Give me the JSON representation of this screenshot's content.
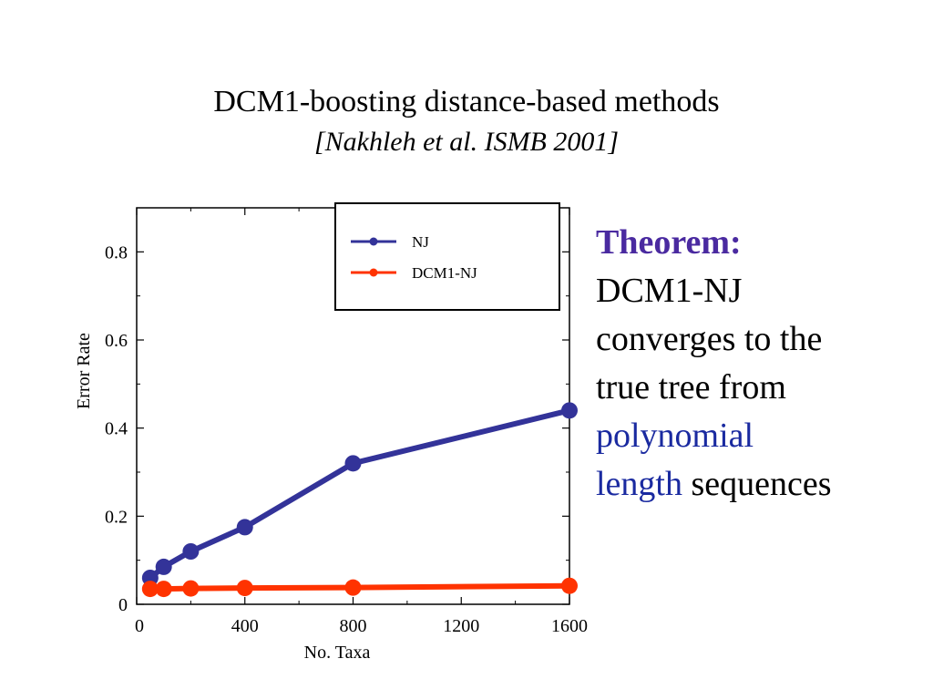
{
  "slide": {
    "title": "DCM1-boosting distance-based methods",
    "subtitle": "[Nakhleh et al. ISMB 2001]"
  },
  "theorem": {
    "heading": "Theorem:",
    "line1": "DCM1-NJ",
    "line2": "converges to the",
    "line3": "true tree from",
    "line4_blue": "polynomial",
    "line5_blue": "length",
    "line5_rest": " sequences",
    "colors": {
      "heading": "#4a2aa0",
      "highlight": "#1a2aa0"
    }
  },
  "chart_data": {
    "type": "line",
    "title": "",
    "xlabel": "No. Taxa",
    "ylabel": "Error Rate",
    "xlim": [
      0,
      1600
    ],
    "ylim": [
      0,
      0.9
    ],
    "xticks": [
      0,
      400,
      800,
      1200,
      1600
    ],
    "xtick_labels": [
      "0",
      "400",
      "800",
      "1200",
      "1600"
    ],
    "yticks": [
      0,
      0.2,
      0.4,
      0.6,
      0.8
    ],
    "ytick_labels": [
      "0",
      "0.2",
      "0.4",
      "0.6",
      "0.8"
    ],
    "grid": false,
    "legend_position": "top-right",
    "series": [
      {
        "name": "NJ",
        "color": "#333399",
        "x": [
          50,
          100,
          200,
          400,
          800,
          1600
        ],
        "y": [
          0.06,
          0.085,
          0.12,
          0.175,
          0.32,
          0.44
        ]
      },
      {
        "name": "DCM1-NJ",
        "color": "#ff3300",
        "x": [
          50,
          100,
          200,
          400,
          800,
          1600
        ],
        "y": [
          0.035,
          0.035,
          0.036,
          0.037,
          0.038,
          0.042
        ]
      }
    ]
  }
}
